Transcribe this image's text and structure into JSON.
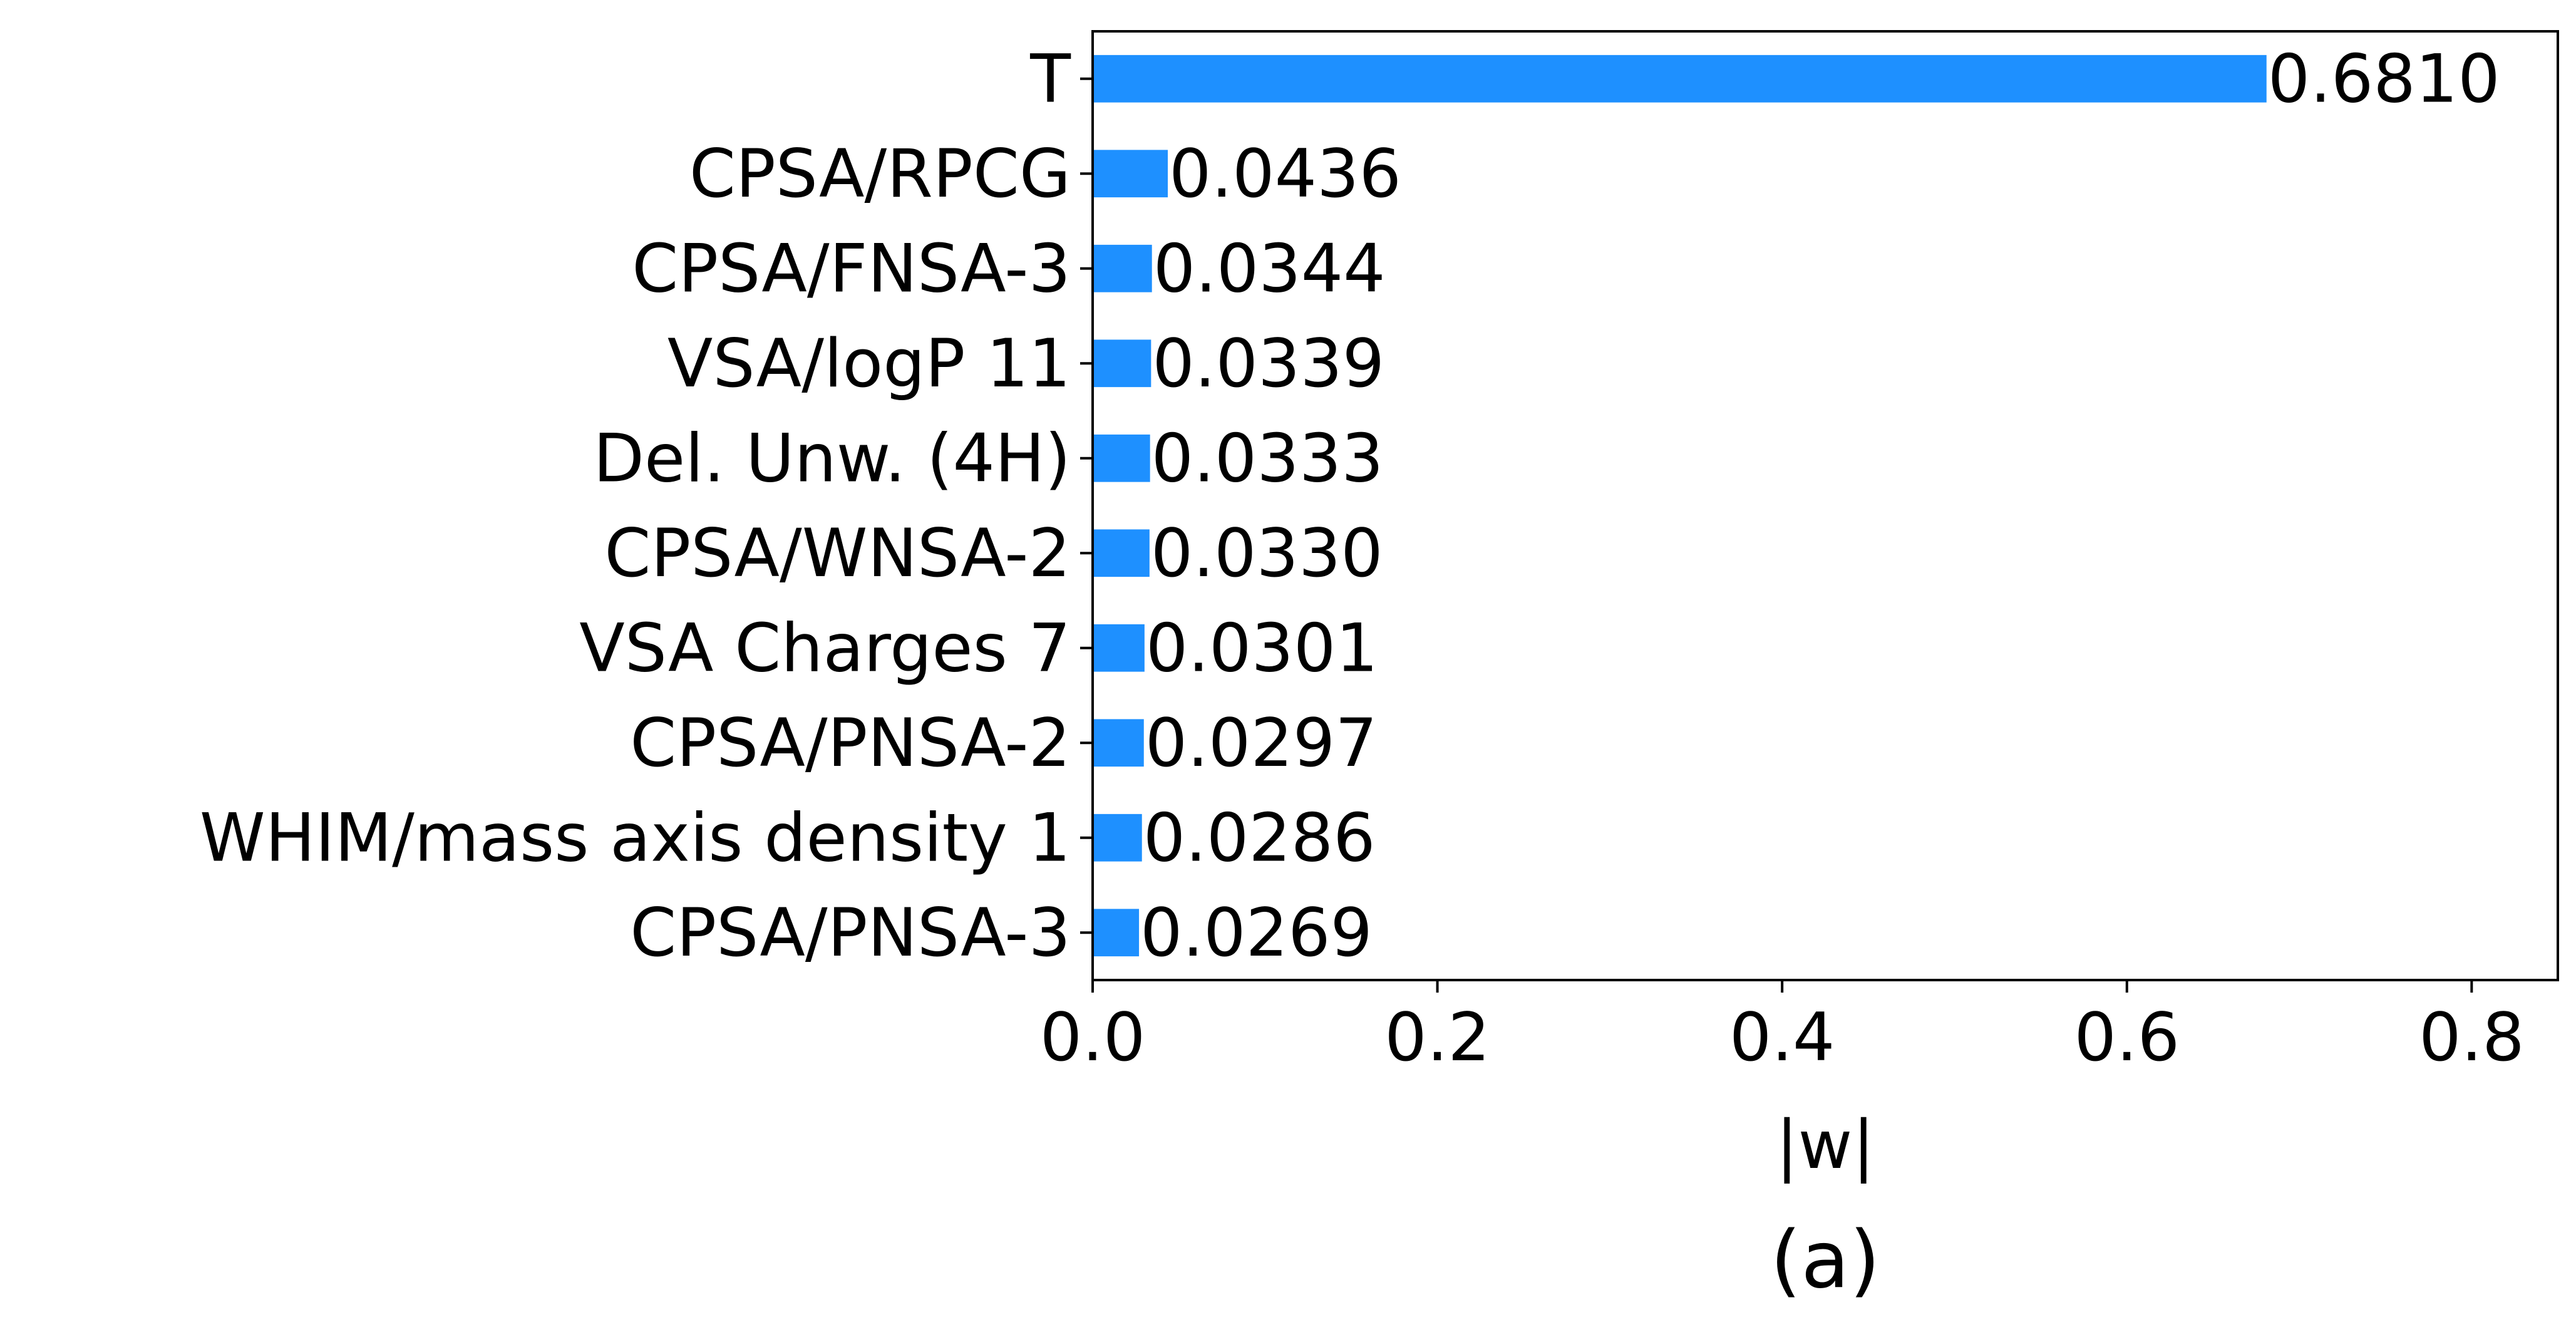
{
  "chart_data": {
    "type": "bar",
    "orientation": "horizontal",
    "categories": [
      "T",
      "CPSA/RPCG",
      "CPSA/FNSA-3",
      "VSA/logP 11",
      "Del. Unw. (4H)",
      "CPSA/WNSA-2",
      "VSA Charges 7",
      "CPSA/PNSA-2",
      "WHIM/mass axis density 1",
      "CPSA/PNSA-3"
    ],
    "values": [
      0.681,
      0.0436,
      0.0344,
      0.0339,
      0.0333,
      0.033,
      0.0301,
      0.0297,
      0.0286,
      0.0269
    ],
    "value_labels": [
      "0.6810",
      "0.0436",
      "0.0344",
      "0.0339",
      "0.0333",
      "0.0330",
      "0.0301",
      "0.0297",
      "0.0286",
      "0.0269"
    ],
    "xlabel": "|w|",
    "ylabel": "",
    "xlim": [
      0,
      0.85
    ],
    "xticks": [
      0.0,
      0.2,
      0.4,
      0.6,
      0.8
    ],
    "xtick_labels": [
      "0.0",
      "0.2",
      "0.4",
      "0.6",
      "0.8"
    ],
    "subfigure_label": "(a)",
    "grid": false,
    "bar_color": "#1e90ff"
  }
}
